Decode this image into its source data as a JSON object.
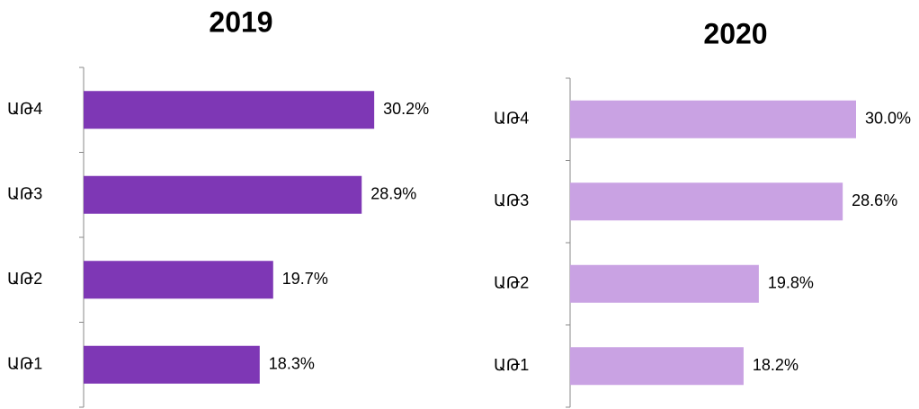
{
  "chart_data": [
    {
      "type": "bar",
      "orientation": "horizontal",
      "title": "2019",
      "categories": [
        "ԱԹ4",
        "ԱԹ3",
        "ԱԹ2",
        "ԱԹ1"
      ],
      "values": [
        30.2,
        28.9,
        19.7,
        18.3
      ],
      "value_labels": [
        "30.2%",
        "28.9%",
        "19.7%",
        "18.3%"
      ],
      "color": "#7e37b5"
    },
    {
      "type": "bar",
      "orientation": "horizontal",
      "title": "2020",
      "categories": [
        "ԱԹ4",
        "ԱԹ3",
        "ԱԹ2",
        "ԱԹ1"
      ],
      "values": [
        30.0,
        28.6,
        19.8,
        18.2
      ],
      "value_labels": [
        "30.0%",
        "28.6%",
        "19.8%",
        "18.2%"
      ],
      "color": "#c9a2e3"
    }
  ]
}
